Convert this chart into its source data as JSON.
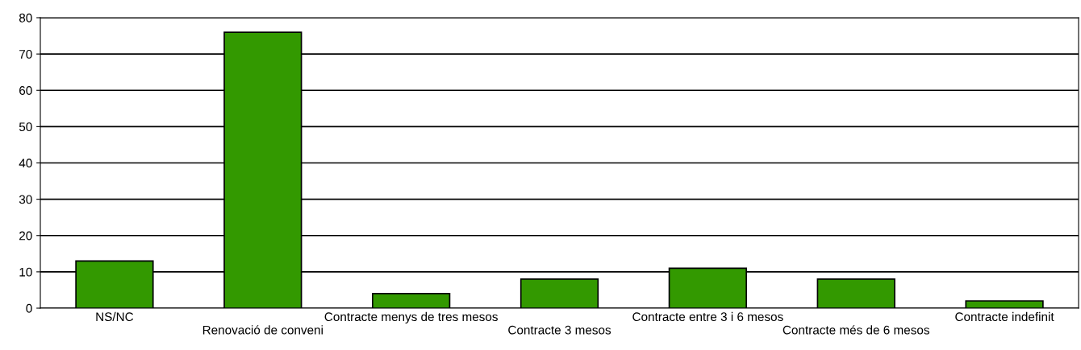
{
  "chart_data": {
    "type": "bar",
    "categories": [
      "NS/NC",
      "Renovació de conveni",
      "Contracte menys de tres mesos",
      "Contracte 3 mesos",
      "Contracte entre 3 i 6 mesos",
      "Contracte més de 6 mesos",
      "Contracte indefinit"
    ],
    "values": [
      13,
      76,
      4,
      8,
      11,
      8,
      2
    ],
    "color": "#339900",
    "ylim": [
      0,
      80
    ],
    "yticks": [
      0,
      10,
      20,
      30,
      40,
      50,
      60,
      70,
      80
    ],
    "grid": "y",
    "legend": false
  }
}
